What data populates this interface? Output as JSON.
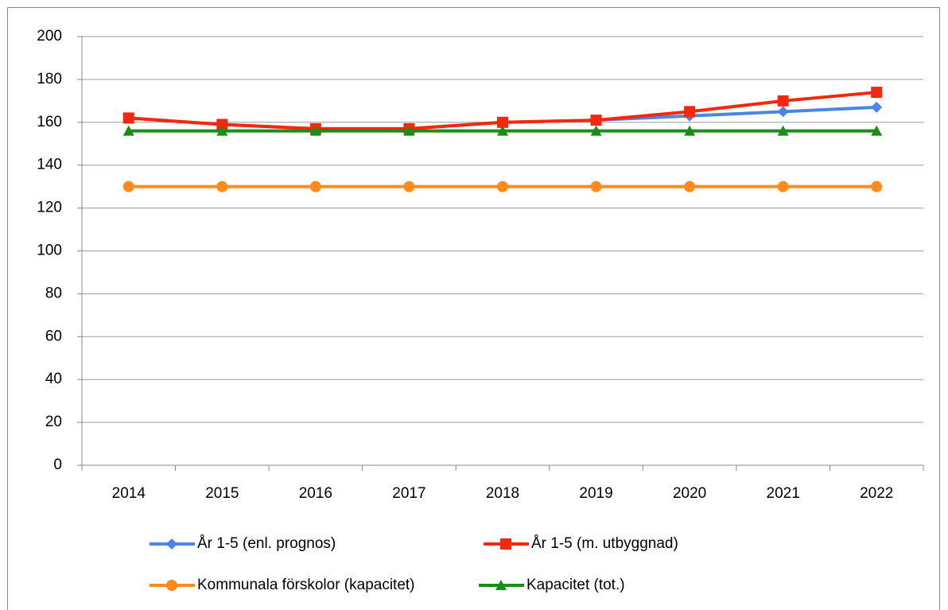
{
  "chart_data": {
    "type": "line",
    "categories": [
      "2014",
      "2015",
      "2016",
      "2017",
      "2018",
      "2019",
      "2020",
      "2021",
      "2022"
    ],
    "series": [
      {
        "name": "År 1-5 (enl. prognos)",
        "color": "#4a86e8",
        "marker": "diamond",
        "values": [
          162,
          159,
          157,
          157,
          160,
          161,
          163,
          165,
          167
        ]
      },
      {
        "name": "År 1-5 (m. utbyggnad)",
        "color": "#f5270f",
        "marker": "square",
        "values": [
          162,
          159,
          157,
          157,
          160,
          161,
          165,
          170,
          174
        ]
      },
      {
        "name": "Kommunala förskolor (kapacitet)",
        "color": "#ff8c1a",
        "marker": "circle",
        "values": [
          130,
          130,
          130,
          130,
          130,
          130,
          130,
          130,
          130
        ]
      },
      {
        "name": "Kapacitet (tot.)",
        "color": "#1a8c1a",
        "marker": "triangle",
        "values": [
          156,
          156,
          156,
          156,
          156,
          156,
          156,
          156,
          156
        ]
      }
    ],
    "ylim": [
      0,
      200
    ],
    "yticks": [
      0,
      20,
      40,
      60,
      80,
      100,
      120,
      140,
      160,
      180,
      200
    ],
    "grid": true,
    "legend": "bottom"
  }
}
